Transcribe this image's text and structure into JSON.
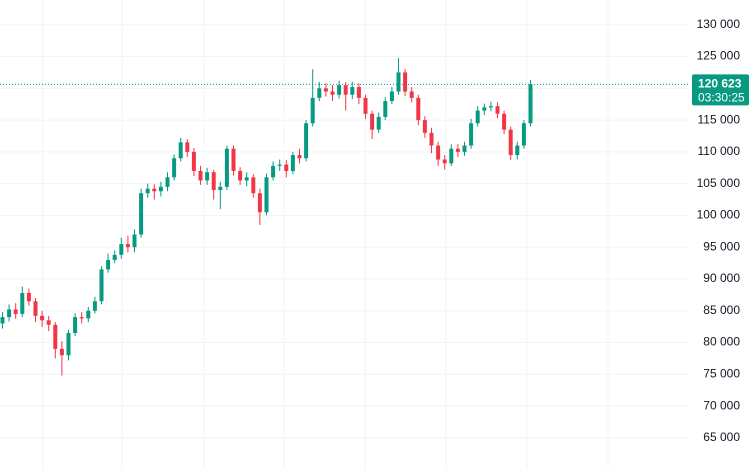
{
  "chart_data": {
    "type": "candlestick",
    "open": [
      83000,
      84000,
      85200,
      84500,
      87800,
      86500,
      84200,
      83500,
      82800,
      79000,
      78000,
      81500,
      84000,
      83800,
      85000,
      86500,
      91500,
      93000,
      93800,
      95500,
      95000,
      97000,
      103500,
      104200,
      103800,
      104500,
      106000,
      109000,
      111500,
      110000,
      107000,
      105500,
      106800,
      104000,
      104500,
      110500,
      107000,
      105500,
      106000,
      103500,
      100500,
      106000,
      107800,
      108000,
      107000,
      109500,
      109000,
      114500,
      118500,
      120000,
      119500,
      119000,
      120500,
      119000,
      120200,
      118500,
      116000,
      113500,
      115500,
      118000,
      119500,
      122500,
      119500,
      118500,
      115000,
      113000,
      111000,
      108800,
      108200,
      110500,
      110000,
      111000,
      114500,
      116500,
      117000,
      117200,
      116000,
      113500,
      109500,
      111000,
      114500
    ],
    "high": [
      84800,
      86000,
      86200,
      88800,
      88500,
      87000,
      85000,
      84200,
      83200,
      80200,
      82000,
      84600,
      84800,
      85600,
      87200,
      92000,
      94000,
      94500,
      96500,
      96800,
      97800,
      104200,
      105000,
      104900,
      105300,
      106800,
      109600,
      112200,
      112000,
      110600,
      107800,
      107500,
      107200,
      105300,
      111000,
      111000,
      107600,
      106800,
      106500,
      104200,
      106600,
      108500,
      108800,
      108700,
      110000,
      110500,
      115000,
      123000,
      121000,
      120800,
      120500,
      121200,
      121000,
      121000,
      120800,
      119000,
      116500,
      116200,
      118600,
      120200,
      124800,
      123000,
      120200,
      119000,
      115600,
      113800,
      111600,
      109500,
      111200,
      111200,
      111600,
      115200,
      117200,
      117600,
      117900,
      117800,
      116500,
      114000,
      111600,
      115000,
      121300
    ],
    "low": [
      82200,
      83300,
      83700,
      84000,
      85800,
      83200,
      82500,
      81800,
      77500,
      74800,
      77200,
      81000,
      83000,
      83200,
      84600,
      86000,
      91000,
      92500,
      93200,
      94200,
      94200,
      96500,
      102800,
      102500,
      103000,
      103800,
      105500,
      108500,
      109200,
      106200,
      104800,
      104800,
      102500,
      101000,
      104000,
      106300,
      104800,
      104600,
      102800,
      98500,
      100000,
      105500,
      107000,
      106000,
      106500,
      108200,
      108500,
      114000,
      118000,
      118700,
      118000,
      118400,
      116500,
      118300,
      117500,
      115200,
      112000,
      113000,
      115000,
      117500,
      119000,
      118800,
      117800,
      114200,
      112200,
      109800,
      107800,
      107200,
      107800,
      109200,
      109400,
      110500,
      114000,
      115800,
      116400,
      115300,
      112800,
      108700,
      108800,
      110500,
      114000
    ],
    "close": [
      84000,
      85200,
      84500,
      87800,
      86500,
      84200,
      83500,
      82800,
      79000,
      78000,
      81500,
      84000,
      83800,
      85000,
      86500,
      91500,
      93000,
      93800,
      95500,
      95000,
      97000,
      103500,
      104200,
      103800,
      104500,
      106000,
      109000,
      111500,
      110000,
      107000,
      105500,
      106800,
      104000,
      104500,
      110500,
      107000,
      105500,
      106000,
      103500,
      100500,
      106000,
      107800,
      108000,
      107000,
      109500,
      109000,
      114500,
      118500,
      120000,
      119500,
      119000,
      120500,
      119000,
      120200,
      118500,
      116000,
      113500,
      115500,
      118000,
      119500,
      122500,
      119500,
      118500,
      115000,
      113000,
      111000,
      108800,
      108200,
      110500,
      110000,
      111000,
      114500,
      116500,
      117000,
      117200,
      116000,
      113500,
      109500,
      111000,
      114500,
      120623
    ],
    "up_color": "#089981",
    "down_color": "#f23645",
    "ylim": [
      60100,
      133900
    ],
    "yticks": [
      {
        "value": 65000,
        "label": "65 000"
      },
      {
        "value": 70000,
        "label": "70 000"
      },
      {
        "value": 75000,
        "label": "75 000"
      },
      {
        "value": 80000,
        "label": "80 000"
      },
      {
        "value": 85000,
        "label": "85 000"
      },
      {
        "value": 90000,
        "label": "90 000"
      },
      {
        "value": 95000,
        "label": "95 000"
      },
      {
        "value": 100000,
        "label": "100 000"
      },
      {
        "value": 105000,
        "label": "105 000"
      },
      {
        "value": 110000,
        "label": "110 000"
      },
      {
        "value": 115000,
        "label": "115 000"
      },
      {
        "value": 120000,
        "label": "120 000"
      },
      {
        "value": 125000,
        "label": "125 000"
      },
      {
        "value": 130000,
        "label": "130 000"
      }
    ],
    "grid": true,
    "last_price": {
      "value": 120623,
      "label": "120 623"
    },
    "countdown": "03:30:25"
  }
}
